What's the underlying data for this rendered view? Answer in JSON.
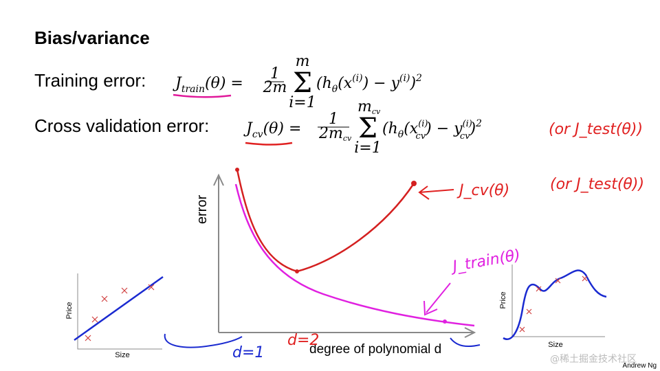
{
  "title": "Bias/variance",
  "training": {
    "label": "Training error:",
    "lhs": [
      "J",
      "train",
      "(θ) ="
    ],
    "fraction": [
      "1",
      "2m"
    ],
    "sum": [
      "Σ",
      "m",
      "i=1"
    ],
    "rhs": [
      "(h",
      "θ",
      "(x",
      "(i)",
      ") − y",
      "(i)",
      ")",
      "2"
    ]
  },
  "cv": {
    "label": "Cross validation error:",
    "lhs": [
      "J",
      "cv",
      "(θ) ="
    ],
    "fraction": [
      "1",
      "2m",
      "cv"
    ],
    "sum": [
      "Σ",
      "m",
      "cv",
      "i=1"
    ],
    "rhs": [
      "(h",
      "θ",
      "(x",
      "(i)",
      "cv",
      ") − y",
      "(i)",
      "cv",
      ")",
      "2"
    ],
    "note": "(or J_test(θ))"
  },
  "plot": {
    "y_label": "error",
    "x_label": "degree of polynomial d",
    "cv_curve_label": "J_cv(θ)",
    "cv_curve_note": "(or J_test(θ))",
    "train_curve_label": "J_train(θ)",
    "d1": "d=1",
    "d2": "d=2"
  },
  "left_inset": {
    "y_label": "Price",
    "x_label": "Size"
  },
  "right_inset": {
    "y_label": "Price",
    "x_label": "Size"
  },
  "footer": {
    "author": "Andrew Ng",
    "watermark": "@稀土掘金技术社区"
  }
}
